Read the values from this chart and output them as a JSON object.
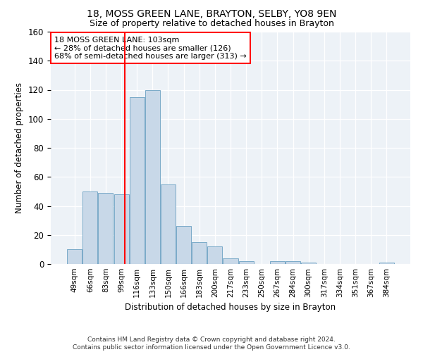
{
  "title1": "18, MOSS GREEN LANE, BRAYTON, SELBY, YO8 9EN",
  "title2": "Size of property relative to detached houses in Brayton",
  "xlabel": "Distribution of detached houses by size in Brayton",
  "ylabel": "Number of detached properties",
  "bar_color": "#c8d8e8",
  "bar_edge_color": "#7aaac8",
  "categories": [
    "49sqm",
    "66sqm",
    "83sqm",
    "99sqm",
    "116sqm",
    "133sqm",
    "150sqm",
    "166sqm",
    "183sqm",
    "200sqm",
    "217sqm",
    "233sqm",
    "250sqm",
    "267sqm",
    "284sqm",
    "300sqm",
    "317sqm",
    "334sqm",
    "351sqm",
    "367sqm",
    "384sqm"
  ],
  "values": [
    10,
    50,
    49,
    48,
    115,
    120,
    55,
    26,
    15,
    12,
    4,
    2,
    0,
    2,
    2,
    1,
    0,
    0,
    0,
    0,
    1
  ],
  "annotation_line1": "18 MOSS GREEN LANE: 103sqm",
  "annotation_line2": "← 28% of detached houses are smaller (126)",
  "annotation_line3": "68% of semi-detached houses are larger (313) →",
  "ylim": [
    0,
    160
  ],
  "yticks": [
    0,
    20,
    40,
    60,
    80,
    100,
    120,
    140,
    160
  ],
  "footer_text": "Contains HM Land Registry data © Crown copyright and database right 2024.\nContains public sector information licensed under the Open Government Licence v3.0.",
  "background_color": "#edf2f7"
}
